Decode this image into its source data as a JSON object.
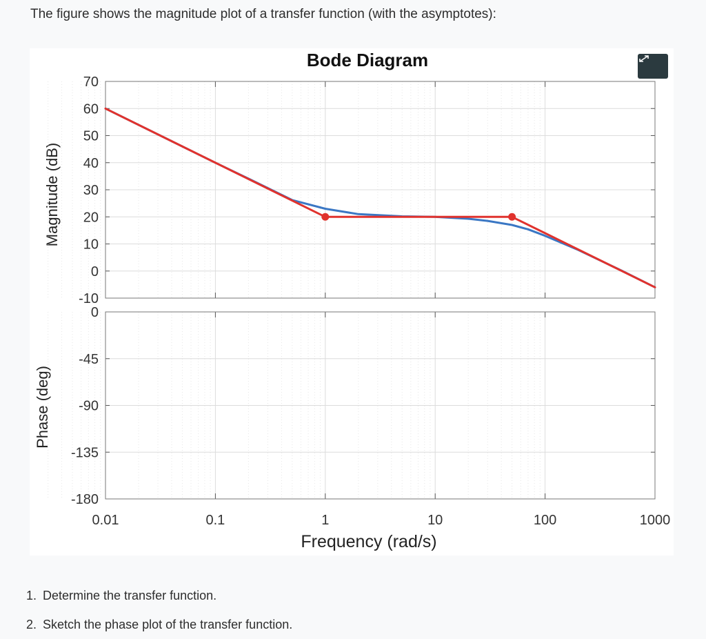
{
  "intro_text": "The figure shows the magnitude plot of a transfer function (with the asymptotes):",
  "expand_icon": "expand-arrows-icon",
  "questions": [
    {
      "number": "1.",
      "text": "Determine the transfer function."
    },
    {
      "number": "2.",
      "text": "Sketch the phase plot of the transfer function."
    }
  ],
  "chart_data": [
    {
      "type": "line",
      "title": "Bode Diagram",
      "xlabel": "Frequency  (rad/s)",
      "ylabel": "Magnitude (dB)",
      "x_scale": "log",
      "xlim": [
        0.01,
        1000
      ],
      "ylim": [
        -10,
        70
      ],
      "x_ticks": [
        "0.01",
        "0.1",
        "1",
        "10",
        "100",
        "1000"
      ],
      "y_ticks": [
        "70",
        "60",
        "50",
        "40",
        "30",
        "20",
        "10",
        "0",
        "-10"
      ],
      "grid": true,
      "series": [
        {
          "color": "#3a77c4",
          "x": [
            0.01,
            0.1,
            0.2,
            0.5,
            1,
            2,
            5,
            10,
            20,
            30,
            50,
            70,
            100,
            200,
            500,
            1000
          ],
          "y": [
            60,
            40,
            34.1,
            26.2,
            23,
            21,
            20.2,
            20,
            19.3,
            18.5,
            17,
            15.4,
            13,
            7.8,
            0.1,
            -6
          ]
        },
        {
          "color": "#e0322d",
          "x": [
            0.01,
            1,
            50,
            1000
          ],
          "y": [
            60,
            20,
            20,
            -6
          ],
          "markers": [
            {
              "x": 1,
              "y": 20
            },
            {
              "x": 50,
              "y": 20
            }
          ]
        }
      ]
    },
    {
      "type": "line",
      "title": "",
      "xlabel": "Frequency  (rad/s)",
      "ylabel": "Phase (deg)",
      "x_scale": "log",
      "xlim": [
        0.01,
        1000
      ],
      "ylim": [
        -180,
        0
      ],
      "x_ticks": [
        "0.01",
        "0.1",
        "1",
        "10",
        "100",
        "1000"
      ],
      "y_ticks": [
        "0",
        "-45",
        "-90",
        "-135",
        "-180"
      ],
      "grid": true,
      "series": []
    }
  ]
}
